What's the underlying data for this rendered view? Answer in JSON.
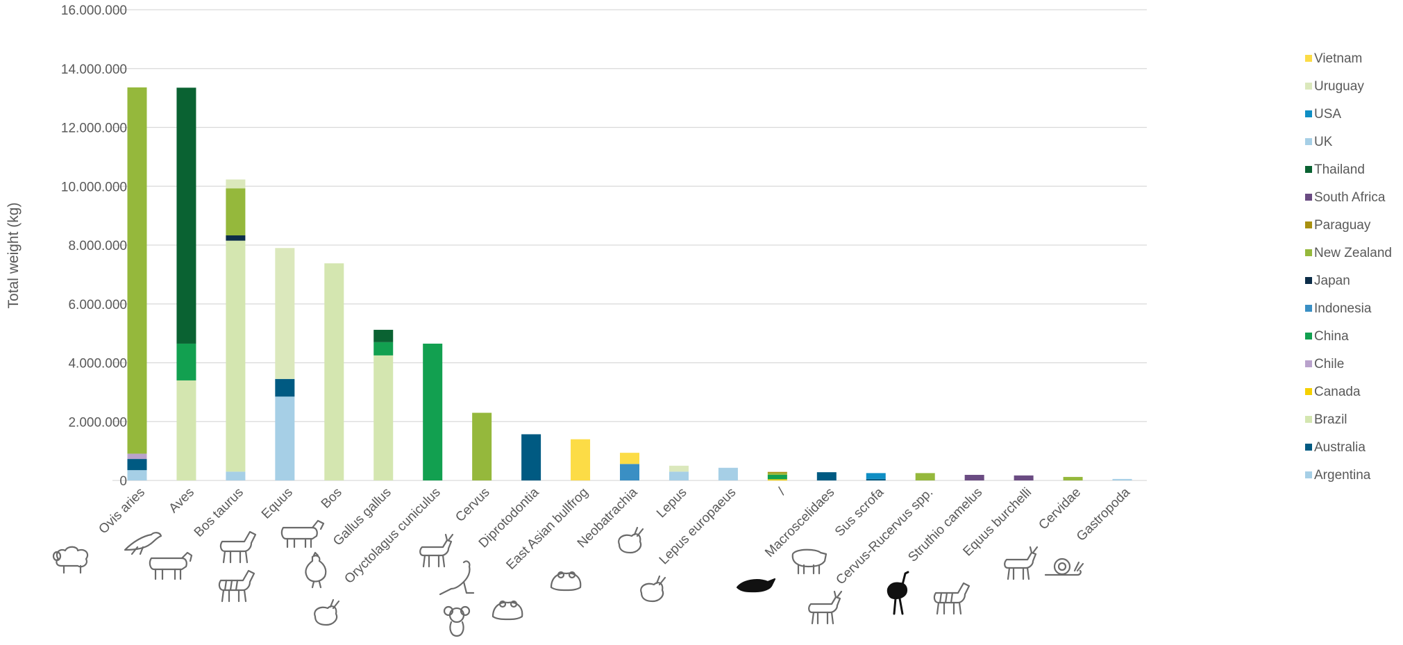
{
  "chart_data": {
    "type": "bar",
    "stacked": true,
    "ylabel": "Total weight (kg)",
    "xlabel": "",
    "title": "",
    "ylim": [
      0,
      16000000
    ],
    "y_ticks": [
      "0",
      "2.000.000",
      "4.000.000",
      "6.000.000",
      "8.000.000",
      "10.000.000",
      "12.000.000",
      "14.000.000",
      "16.000.000"
    ],
    "tick_values": [
      0,
      2000000,
      4000000,
      6000000,
      8000000,
      10000000,
      12000000,
      14000000,
      16000000
    ],
    "grid": true,
    "legend_position": "right",
    "categories": [
      "Ovis aries",
      "Aves",
      "Bos taurus",
      "Equus",
      "Bos",
      "Gallus gallus",
      "Oryctolagus cuniculus",
      "Cervus",
      "Diprotodontia",
      "East Asian bullfrog",
      "Neobatrachia",
      "Lepus",
      "Lepus europaeus",
      "/",
      "Macroscelidaes",
      "Sus scrofa",
      "Cervus-Rucervus spp.",
      "Struthio camelus",
      "Equus burchelli",
      "Cervidae",
      "Gastropoda"
    ],
    "series": [
      {
        "name": "Argentina",
        "color": "#a6cfe6",
        "values": [
          350000,
          0,
          300000,
          2850000,
          0,
          0,
          0,
          0,
          0,
          0,
          0,
          300000,
          430000,
          0,
          0,
          0,
          0,
          0,
          0,
          0,
          50000
        ]
      },
      {
        "name": "Australia",
        "color": "#005a82",
        "values": [
          380000,
          0,
          0,
          600000,
          0,
          0,
          0,
          0,
          1570000,
          0,
          0,
          0,
          0,
          0,
          280000,
          50000,
          0,
          0,
          0,
          0,
          0
        ]
      },
      {
        "name": "Brazil",
        "color": "#d4e6b0",
        "values": [
          0,
          3400000,
          7850000,
          0,
          7380000,
          4250000,
          0,
          0,
          0,
          0,
          0,
          0,
          0,
          0,
          0,
          0,
          0,
          0,
          0,
          0,
          0
        ]
      },
      {
        "name": "Canada",
        "color": "#f5d000",
        "values": [
          0,
          0,
          0,
          0,
          0,
          0,
          0,
          0,
          0,
          0,
          0,
          0,
          0,
          40000,
          0,
          0,
          0,
          0,
          0,
          0,
          0
        ]
      },
      {
        "name": "Chile",
        "color": "#b9a2cc",
        "values": [
          180000,
          0,
          0,
          0,
          0,
          0,
          0,
          0,
          0,
          0,
          0,
          0,
          0,
          0,
          0,
          0,
          0,
          0,
          0,
          0,
          0
        ]
      },
      {
        "name": "China",
        "color": "#12a050",
        "values": [
          0,
          1250000,
          0,
          0,
          0,
          450000,
          4650000,
          0,
          0,
          0,
          0,
          0,
          0,
          150000,
          0,
          0,
          0,
          0,
          0,
          0,
          0
        ]
      },
      {
        "name": "Indonesia",
        "color": "#3a8fc4",
        "values": [
          0,
          0,
          0,
          0,
          0,
          0,
          0,
          0,
          0,
          0,
          560000,
          0,
          0,
          0,
          0,
          0,
          0,
          0,
          0,
          0,
          0
        ]
      },
      {
        "name": "Japan",
        "color": "#0c2d48",
        "values": [
          0,
          0,
          180000,
          0,
          0,
          0,
          0,
          0,
          0,
          0,
          0,
          0,
          0,
          0,
          0,
          0,
          0,
          0,
          0,
          0,
          0
        ]
      },
      {
        "name": "New Zealand",
        "color": "#95b83c",
        "values": [
          12450000,
          0,
          1600000,
          0,
          0,
          0,
          0,
          2300000,
          0,
          0,
          0,
          0,
          0,
          60000,
          0,
          0,
          250000,
          0,
          0,
          120000,
          0
        ]
      },
      {
        "name": "Paraguay",
        "color": "#a89010",
        "values": [
          0,
          0,
          0,
          0,
          0,
          0,
          0,
          0,
          0,
          0,
          0,
          0,
          0,
          40000,
          0,
          0,
          0,
          0,
          0,
          0,
          0
        ]
      },
      {
        "name": "South Africa",
        "color": "#6a4b82",
        "values": [
          0,
          0,
          0,
          0,
          0,
          0,
          0,
          0,
          0,
          0,
          0,
          0,
          0,
          0,
          0,
          0,
          0,
          190000,
          170000,
          0,
          0
        ]
      },
      {
        "name": "Thailand",
        "color": "#0a6232",
        "values": [
          0,
          8700000,
          0,
          0,
          0,
          420000,
          0,
          0,
          0,
          0,
          0,
          0,
          0,
          0,
          0,
          0,
          0,
          0,
          0,
          0,
          0
        ]
      },
      {
        "name": "UK",
        "color": "#a6cfe6",
        "values": [
          0,
          0,
          0,
          0,
          0,
          0,
          0,
          0,
          0,
          0,
          0,
          0,
          0,
          0,
          0,
          0,
          0,
          0,
          0,
          0,
          0
        ]
      },
      {
        "name": "USA",
        "color": "#0f8ec4",
        "values": [
          0,
          0,
          0,
          0,
          0,
          0,
          0,
          0,
          0,
          0,
          0,
          0,
          0,
          0,
          0,
          200000,
          0,
          0,
          0,
          0,
          0
        ]
      },
      {
        "name": "Uruguay",
        "color": "#dbe8bc",
        "values": [
          0,
          0,
          300000,
          4450000,
          0,
          0,
          0,
          0,
          0,
          0,
          0,
          200000,
          0,
          0,
          0,
          0,
          0,
          0,
          0,
          0,
          0
        ]
      },
      {
        "name": "Vietnam",
        "color": "#fcdc46",
        "values": [
          0,
          0,
          0,
          0,
          0,
          0,
          0,
          0,
          0,
          1400000,
          380000,
          0,
          0,
          0,
          0,
          0,
          0,
          0,
          0,
          0,
          0
        ]
      }
    ],
    "annotations": {
      "animal_icons": [
        "sheep-icon",
        "bird-icon",
        "cow-icon",
        "horse-icon",
        "zebra-icon",
        "bull-icon",
        "rooster-icon",
        "rabbit-icon",
        "deer-icon",
        "kangaroo-icon",
        "koala-icon",
        "frog-icon",
        "frog-icon",
        "rabbit-icon",
        "hare-icon",
        "shrew-icon",
        "pig-icon",
        "deer-icon",
        "ostrich-icon",
        "zebra-icon",
        "deer-icon",
        "snail-icon"
      ]
    }
  }
}
